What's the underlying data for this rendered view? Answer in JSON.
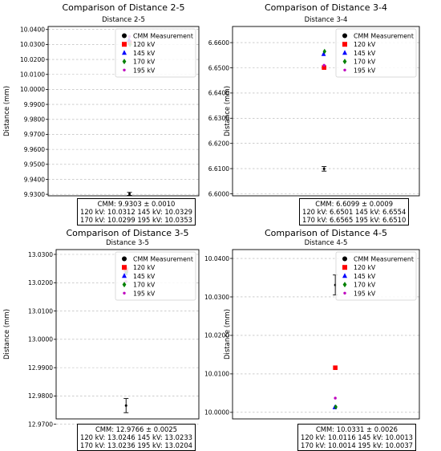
{
  "legend_labels": [
    "CMM Measurement",
    "120 kV",
    "145 kV",
    "170 kV",
    "195 kV"
  ],
  "colors": {
    "cmm": "#000000",
    "kv120": "#ff0000",
    "kv145": "#0000ff",
    "kv170": "#008000",
    "kv195": "#bf00bf"
  },
  "ylabel": "Distance (mm)",
  "panels": [
    {
      "suptitle": "Comparison of Distance 2-5",
      "title": "Distance 2-5",
      "ticks": [
        "9.9300",
        "9.9400",
        "9.9500",
        "9.9600",
        "9.9700",
        "9.9800",
        "9.9900",
        "10.0000",
        "10.0100",
        "10.0200",
        "10.0300",
        "10.0400"
      ],
      "info": [
        "CMM: 9.9303 ± 0.0010",
        "120 kV: 10.0312 145 kV: 10.0329",
        "170 kV: 10.0299 195 kV: 10.0353"
      ]
    },
    {
      "suptitle": "Comparison of Distance 3-4",
      "title": "Distance 3-4",
      "ticks": [
        "6.6000",
        "6.6100",
        "6.6200",
        "6.6300",
        "6.6400",
        "6.6500",
        "6.6600"
      ],
      "info": [
        "CMM: 6.6099 ± 0.0009",
        "120 kV: 6.6501 145 kV: 6.6554",
        "170 kV: 6.6565 195 kV: 6.6510"
      ]
    },
    {
      "suptitle": "Comparison of Distance 3-5",
      "title": "Distance 3-5",
      "ticks": [
        "12.9700",
        "12.9800",
        "12.9900",
        "13.0000",
        "13.0100",
        "13.0200",
        "13.0300"
      ],
      "info": [
        "CMM: 12.9766 ± 0.0025",
        "120 kV: 13.0246 145 kV: 13.0233",
        "170 kV: 13.0236 195 kV: 13.0204"
      ]
    },
    {
      "suptitle": "Comparison of Distance 4-5",
      "title": "Distance 4-5",
      "ticks": [
        "10.0000",
        "10.0100",
        "10.0200",
        "10.0300",
        "10.0400"
      ],
      "info": [
        "CMM: 10.0331 ± 0.0026",
        "120 kV: 10.0116 145 kV: 10.0013",
        "170 kV: 10.0014 195 kV: 10.0037"
      ]
    }
  ],
  "chart_data": [
    {
      "type": "scatter",
      "title": "Distance 2-5",
      "ylabel": "Distance (mm)",
      "ylim": [
        9.929,
        10.042
      ],
      "grid": true,
      "legend": "top-right",
      "cmm": {
        "value": 9.9303,
        "err": 0.001
      },
      "series": [
        {
          "name": "120 kV",
          "value": 10.0312
        },
        {
          "name": "145 kV",
          "value": 10.0329
        },
        {
          "name": "170 kV",
          "value": 10.0299
        },
        {
          "name": "195 kV",
          "value": 10.0353
        }
      ]
    },
    {
      "type": "scatter",
      "title": "Distance 3-4",
      "ylabel": "Distance (mm)",
      "ylim": [
        6.5992,
        6.6664
      ],
      "grid": true,
      "legend": "top-right",
      "cmm": {
        "value": 6.6099,
        "err": 0.0009
      },
      "series": [
        {
          "name": "120 kV",
          "value": 6.6501
        },
        {
          "name": "145 kV",
          "value": 6.6554
        },
        {
          "name": "170 kV",
          "value": 6.6565
        },
        {
          "name": "195 kV",
          "value": 6.651
        }
      ]
    },
    {
      "type": "scatter",
      "title": "Distance 3-5",
      "ylabel": "Distance (mm)",
      "ylim": [
        12.9719,
        13.0317
      ],
      "grid": true,
      "legend": "top-right",
      "cmm": {
        "value": 12.9766,
        "err": 0.0025
      },
      "series": [
        {
          "name": "120 kV",
          "value": 13.0246
        },
        {
          "name": "145 kV",
          "value": 13.0233
        },
        {
          "name": "170 kV",
          "value": 13.0236
        },
        {
          "name": "195 kV",
          "value": 13.0204
        }
      ]
    },
    {
      "type": "scatter",
      "title": "Distance 4-5",
      "ylabel": "Distance (mm)",
      "ylim": [
        9.9983,
        10.0423
      ],
      "grid": true,
      "legend": "top-right",
      "cmm": {
        "value": 10.0331,
        "err": 0.0026
      },
      "series": [
        {
          "name": "120 kV",
          "value": 10.0116
        },
        {
          "name": "145 kV",
          "value": 10.0013
        },
        {
          "name": "170 kV",
          "value": 10.0014
        },
        {
          "name": "195 kV",
          "value": 10.0037
        }
      ]
    }
  ]
}
